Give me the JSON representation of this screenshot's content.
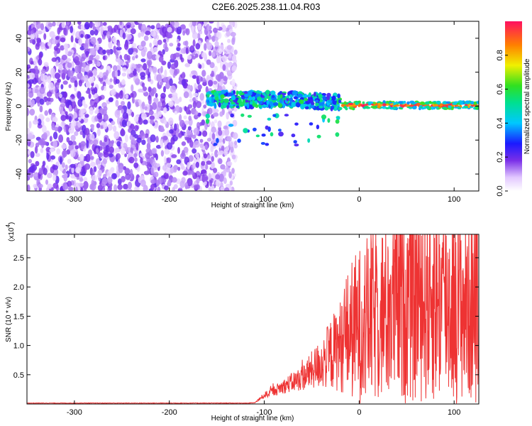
{
  "title": "C2E6.2025.238.11.04.R03",
  "colors": {
    "signal": "#ee3333",
    "noise": "#7a2fe8"
  },
  "chart_data": [
    {
      "type": "heatmap",
      "title": "C2E6.2025.238.11.04.R03",
      "xlabel": "Height of straight line (km)",
      "ylabel": "Frequency (Hz)",
      "xlim": [
        -350,
        126
      ],
      "ylim": [
        -50,
        50
      ],
      "xticks": [
        -300,
        -200,
        -100,
        0,
        100
      ],
      "yticks": [
        -40,
        -20,
        0,
        20,
        40
      ],
      "colorbar": {
        "label": "Normalized spectral amplitude",
        "range": [
          0.0,
          1.0
        ],
        "ticks": [
          0.0,
          0.2,
          0.4,
          0.6,
          0.8
        ]
      },
      "regions": [
        {
          "name": "broadband noise",
          "x_range": [
            -350,
            -130
          ],
          "freq_range": [
            -50,
            50
          ],
          "amplitude": 0.1
        },
        {
          "name": "onset band",
          "x_range": [
            -160,
            -20
          ],
          "freq_range": [
            -5,
            12
          ],
          "amplitude": 0.4
        },
        {
          "name": "steady tone",
          "x_range": [
            -20,
            126
          ],
          "freq_range": [
            -2,
            3
          ],
          "amplitude": 0.95
        }
      ]
    },
    {
      "type": "line",
      "xlabel": "Height of straight line (km)",
      "ylabel": "SNR (10 * v/v)",
      "y_multiplier": "(x10",
      "y_multiplier_exp": "4",
      "xlim": [
        -350,
        126
      ],
      "ylim": [
        0,
        2.9
      ],
      "xticks": [
        -300,
        -200,
        -100,
        0,
        100
      ],
      "yticks": [
        0.5,
        1.0,
        1.5,
        2.0,
        2.5
      ],
      "series": [
        {
          "name": "SNR",
          "x": [
            -350,
            -300,
            -250,
            -200,
            -150,
            -110,
            -100,
            -80,
            -60,
            -40,
            -20,
            -10,
            0,
            20,
            40,
            60,
            80,
            100,
            120,
            126
          ],
          "y": [
            0.01,
            0.01,
            0.01,
            0.01,
            0.01,
            0.02,
            0.15,
            0.3,
            0.45,
            0.7,
            1.0,
            1.25,
            1.35,
            1.55,
            1.7,
            1.85,
            1.8,
            1.75,
            1.7,
            1.65
          ]
        }
      ]
    }
  ]
}
